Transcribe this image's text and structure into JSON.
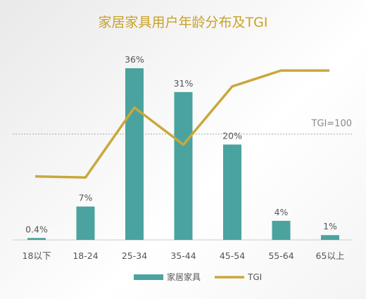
{
  "chart_data": {
    "type": "bar+line",
    "title": "家居家具用户年龄分布及TGI",
    "categories": [
      "18以下",
      "18-24",
      "25-34",
      "35-44",
      "45-54",
      "55-64",
      "65以上"
    ],
    "series": [
      {
        "name": "家居家具",
        "type": "bar",
        "color": "#4aa39e",
        "values": [
          0.4,
          7,
          36,
          31,
          20,
          4,
          1
        ],
        "labels": [
          "0.4%",
          "7%",
          "36%",
          "31%",
          "20%",
          "4%",
          "1%"
        ]
      },
      {
        "name": "TGI",
        "type": "line",
        "color": "#c9a83b",
        "values": [
          60,
          59,
          125,
          90,
          145,
          160,
          160
        ]
      }
    ],
    "bar_ylim": [
      0,
      38
    ],
    "tgi_ylim": [
      0,
      200
    ],
    "reference_line": {
      "label": "TGI=100",
      "value": 100
    },
    "legend_position": "bottom-center",
    "grid": false
  }
}
